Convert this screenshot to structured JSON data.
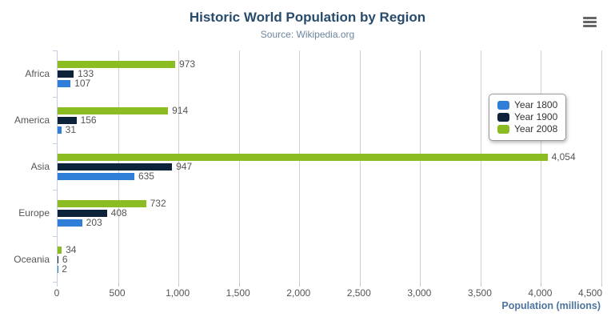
{
  "title": "Historic World Population by Region",
  "subtitle": "Source: Wikipedia.org",
  "chart_data": {
    "type": "bar",
    "orientation": "horizontal",
    "categories": [
      "Africa",
      "America",
      "Asia",
      "Europe",
      "Oceania"
    ],
    "series": [
      {
        "name": "Year 1800",
        "color": "#2f7ed8",
        "values": [
          107,
          31,
          635,
          203,
          2
        ]
      },
      {
        "name": "Year 1900",
        "color": "#0d233a",
        "values": [
          133,
          156,
          947,
          408,
          6
        ]
      },
      {
        "name": "Year 2008",
        "color": "#8bbc21",
        "values": [
          973,
          914,
          4054,
          732,
          34
        ]
      }
    ],
    "series_render_order": "reversed-top-to-bottom",
    "xlabel": "Population (millions)",
    "xlim": [
      0,
      4500
    ],
    "x_tick_labels": [
      "0",
      "500",
      "1,000",
      "1,500",
      "2,000",
      "2,500",
      "3,000",
      "3,500",
      "4,000",
      "4,500"
    ],
    "grid": true,
    "data_labels": true,
    "legend_position": "right"
  },
  "colors": {
    "title": "#274b6d",
    "subtitle": "#6d869f",
    "axis_title": "#4d759e",
    "tick_label": "#555555",
    "data_label": "#555555",
    "gridline": "#cfcfcf",
    "category_axis_line": "#c0d0e0",
    "legend_border": "#999999",
    "menu_icon": "#666666"
  }
}
